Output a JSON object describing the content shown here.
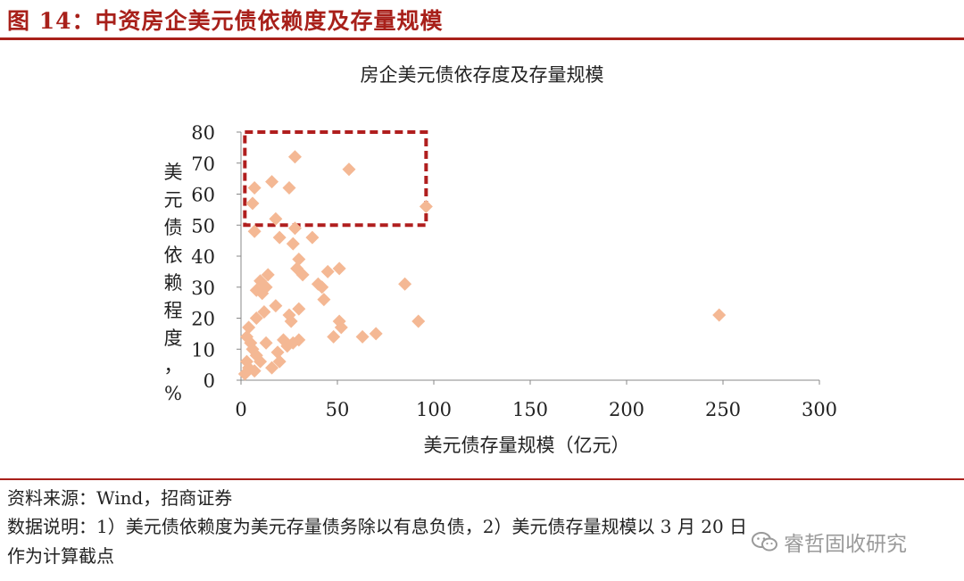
{
  "header": {
    "figure_title": "图 14：中资房企美元债依赖度及存量规模"
  },
  "chart_data": {
    "type": "scatter",
    "title": "房企美元债依存度及存量规模",
    "xlabel": "美元债存量规模（亿元）",
    "ylabel": "美元债依赖程度，%",
    "xlim": [
      0,
      300
    ],
    "ylim": [
      0,
      80
    ],
    "x_ticks": [
      "0",
      "50",
      "100",
      "150",
      "200",
      "250",
      "300"
    ],
    "y_ticks": [
      "0",
      "10",
      "20",
      "30",
      "40",
      "50",
      "60",
      "70",
      "80"
    ],
    "grid": false,
    "marker_color": "#f4b894",
    "highlight_color": "#b01e1e",
    "highlight_box": {
      "x": [
        2,
        96
      ],
      "y": [
        50,
        80
      ]
    },
    "points": [
      [
        28,
        72
      ],
      [
        56,
        68
      ],
      [
        7,
        62
      ],
      [
        16,
        64
      ],
      [
        25,
        62
      ],
      [
        6,
        57
      ],
      [
        96,
        56
      ],
      [
        18,
        52
      ],
      [
        7,
        48
      ],
      [
        20,
        46
      ],
      [
        28,
        49
      ],
      [
        27,
        44
      ],
      [
        37,
        46
      ],
      [
        30,
        39
      ],
      [
        29,
        36
      ],
      [
        14,
        34
      ],
      [
        10,
        32
      ],
      [
        13,
        30
      ],
      [
        8,
        29
      ],
      [
        11,
        28
      ],
      [
        32,
        34
      ],
      [
        40,
        31
      ],
      [
        42,
        30
      ],
      [
        45,
        35
      ],
      [
        51,
        36
      ],
      [
        43,
        26
      ],
      [
        85,
        31
      ],
      [
        18,
        24
      ],
      [
        12,
        22
      ],
      [
        8,
        20
      ],
      [
        25,
        21
      ],
      [
        30,
        23
      ],
      [
        26,
        19
      ],
      [
        51,
        19
      ],
      [
        52,
        17
      ],
      [
        92,
        19
      ],
      [
        48,
        14
      ],
      [
        63,
        14
      ],
      [
        70,
        15
      ],
      [
        248,
        21
      ],
      [
        4,
        17
      ],
      [
        3,
        14
      ],
      [
        5,
        12
      ],
      [
        13,
        12
      ],
      [
        22,
        13
      ],
      [
        27,
        12
      ],
      [
        24,
        11
      ],
      [
        19,
        9
      ],
      [
        6,
        10
      ],
      [
        8,
        8
      ],
      [
        3,
        6
      ],
      [
        10,
        6
      ],
      [
        4,
        4
      ],
      [
        7,
        3
      ],
      [
        16,
        4
      ],
      [
        2,
        2
      ],
      [
        20,
        6
      ],
      [
        30,
        13
      ]
    ]
  },
  "notes": {
    "source": "资料来源：Wind，招商证券",
    "explain_line1": "数据说明：1）美元债依赖度为美元存量债务除以有息负债，2）美元债存量规模以 3 月 20 日",
    "explain_line2": "作为计算截点"
  },
  "watermark": {
    "text": "睿哲固收研究",
    "icon": "wechat-icon"
  }
}
